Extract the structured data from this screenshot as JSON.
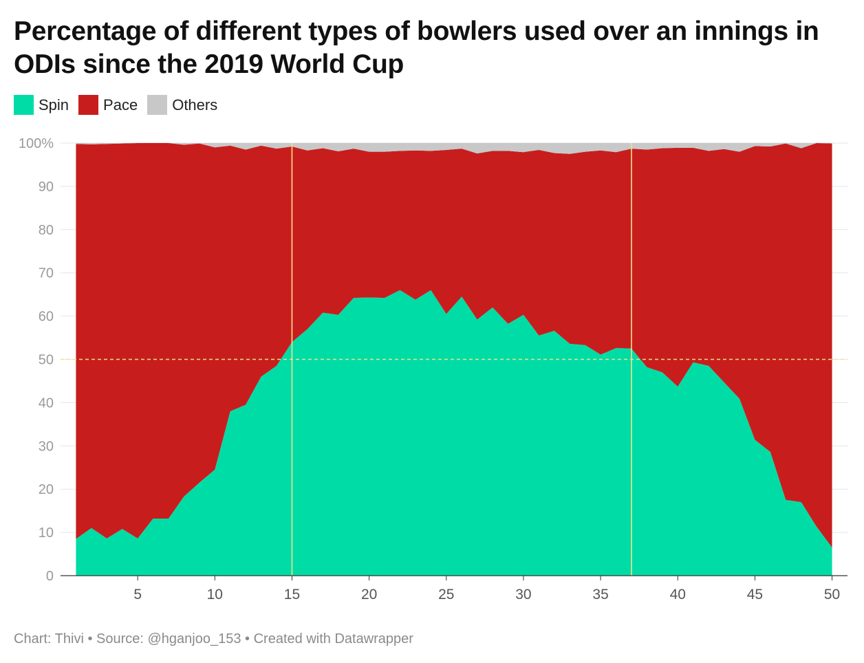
{
  "title": "Percentage of different types of bowlers used over an innings in ODIs since the 2019 World Cup",
  "legend": [
    {
      "name": "Spin",
      "color": "#00dca6"
    },
    {
      "name": "Pace",
      "color": "#c71e1d"
    },
    {
      "name": "Others",
      "color": "#c8c8c8"
    }
  ],
  "footer": {
    "credit": "Chart: Thivi",
    "separator": " • ",
    "source": "Source: @hganjoo_153",
    "tool": "Created with Datawrapper"
  },
  "chart_data": {
    "type": "area",
    "stacked": true,
    "x": [
      1,
      2,
      3,
      4,
      5,
      6,
      7,
      8,
      9,
      10,
      11,
      12,
      13,
      14,
      15,
      16,
      17,
      18,
      19,
      20,
      21,
      22,
      23,
      24,
      25,
      26,
      27,
      28,
      29,
      30,
      31,
      32,
      33,
      34,
      35,
      36,
      37,
      38,
      39,
      40,
      41,
      42,
      43,
      44,
      45,
      46,
      47,
      48,
      49,
      50
    ],
    "series": [
      {
        "name": "Spin",
        "color": "#00dca6",
        "values": [
          8.5,
          11,
          8.6,
          10.8,
          8.6,
          13.2,
          13.2,
          18.3,
          21.5,
          24.5,
          38,
          39.5,
          46,
          48.5,
          54,
          57,
          60.8,
          60.3,
          64.2,
          64.3,
          64.2,
          66,
          63.8,
          66,
          60.5,
          64.5,
          59.2,
          62,
          58.2,
          60.3,
          55.5,
          56.6,
          53.6,
          53.3,
          51.1,
          52.6,
          52.5,
          48.2,
          47,
          43.7,
          49.3,
          48.5,
          44.7,
          40.9,
          31.4,
          28.6,
          17.5,
          17,
          11.3,
          6.5
        ]
      },
      {
        "name": "Pace",
        "color": "#c71e1d",
        "values": [
          91.3,
          88.7,
          91.2,
          89.1,
          91.4,
          86.8,
          86.8,
          81.3,
          78.4,
          74.5,
          61.4,
          59,
          53.4,
          50.2,
          45.2,
          41.3,
          38,
          37.8,
          34.5,
          33.7,
          33.8,
          32.2,
          34.5,
          32.2,
          37.9,
          34.2,
          38.4,
          36.2,
          40,
          37.6,
          42.9,
          41.1,
          43.9,
          44.7,
          47.2,
          45.3,
          46.2,
          50.3,
          51.8,
          55.2,
          49.6,
          49.7,
          53.9,
          57.1,
          67.9,
          70.6,
          82.4,
          81.8,
          88.7,
          93.4
        ]
      },
      {
        "name": "Others",
        "color": "#c8c8c8",
        "values": [
          0.2,
          0.3,
          0.2,
          0.1,
          0,
          0,
          0,
          0.4,
          0.1,
          1,
          0.6,
          1.5,
          0.6,
          1.3,
          0.8,
          1.7,
          1.2,
          1.9,
          1.3,
          2,
          2,
          1.8,
          1.7,
          1.8,
          1.6,
          1.3,
          2.4,
          1.8,
          1.8,
          2.1,
          1.6,
          2.3,
          2.5,
          2,
          1.7,
          2.1,
          1.3,
          1.5,
          1.2,
          1.1,
          1.1,
          1.8,
          1.4,
          2,
          0.7,
          0.8,
          0.1,
          1.2,
          0,
          0.1
        ]
      }
    ],
    "xticks": [
      5,
      10,
      15,
      20,
      25,
      30,
      35,
      40,
      45,
      50
    ],
    "yticks": [
      0,
      10,
      20,
      30,
      40,
      50,
      60,
      70,
      80,
      90,
      100
    ],
    "ytick_labels": [
      "0",
      "10",
      "20",
      "30",
      "40",
      "50",
      "60",
      "70",
      "80",
      "90",
      "100%"
    ],
    "xlim": [
      0,
      51
    ],
    "ylim": [
      0,
      100
    ],
    "reference_lines": {
      "x": [
        15,
        37
      ],
      "x_color": "#f5e08c",
      "y": [
        50
      ],
      "y_color": "#f5e08c"
    },
    "grid": true,
    "legend_position": "top-left"
  }
}
